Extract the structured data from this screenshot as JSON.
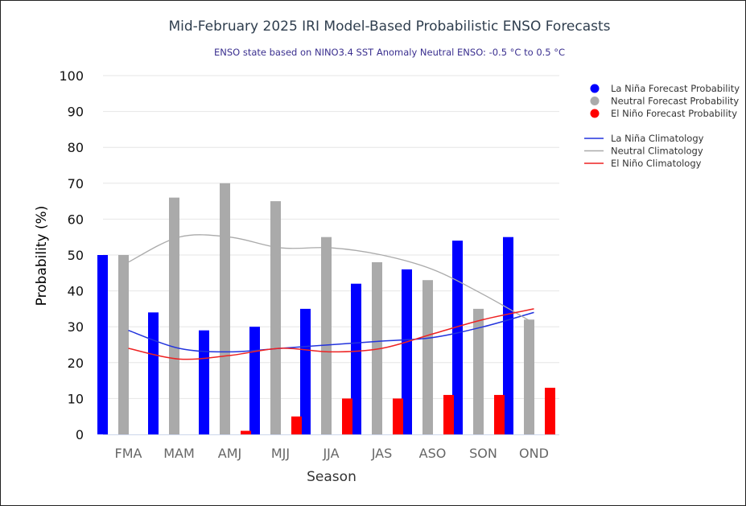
{
  "chart_data": {
    "type": "bar",
    "title": "Mid-February 2025 IRI Model-Based Probabilistic ENSO Forecasts",
    "subtitle": "ENSO state based on NINO3.4 SST Anomaly Neutral ENSO: -0.5 °C to 0.5 °C",
    "xlabel": "Season",
    "ylabel": "Probability (%)",
    "ylim": [
      0,
      100
    ],
    "yticks": [
      "0",
      "10",
      "20",
      "30",
      "40",
      "50",
      "60",
      "70",
      "80",
      "90",
      "100"
    ],
    "categories": [
      "FMA",
      "MAM",
      "AMJ",
      "MJJ",
      "JJA",
      "JAS",
      "ASO",
      "SON",
      "OND"
    ],
    "grid": true,
    "legend_position": "right",
    "series": [
      {
        "name": "La Niña Forecast Probability",
        "kind": "bar",
        "color": "#0000ff",
        "values": [
          50,
          34,
          29,
          30,
          35,
          42,
          46,
          54,
          55
        ]
      },
      {
        "name": "Neutral Forecast Probability",
        "kind": "bar",
        "color": "#aaaaaa",
        "values": [
          50,
          66,
          70,
          65,
          55,
          48,
          43,
          35,
          32
        ]
      },
      {
        "name": "El Niño Forecast Probability",
        "kind": "bar",
        "color": "#ff0000",
        "values": [
          0,
          0,
          1,
          5,
          10,
          10,
          11,
          11,
          13
        ]
      },
      {
        "name": "La Niña Climatology",
        "kind": "line",
        "color": "#2233dd",
        "values": [
          29,
          24,
          23,
          24,
          25,
          26,
          27,
          30,
          34
        ]
      },
      {
        "name": "Neutral Climatology",
        "kind": "line",
        "color": "#aaaaaa",
        "values": [
          48,
          55,
          55,
          52,
          52,
          50,
          46,
          39,
          31
        ]
      },
      {
        "name": "El Niño Climatology",
        "kind": "line",
        "color": "#ee2222",
        "values": [
          24,
          21,
          22,
          24,
          23,
          24,
          28,
          32,
          35
        ]
      }
    ]
  }
}
